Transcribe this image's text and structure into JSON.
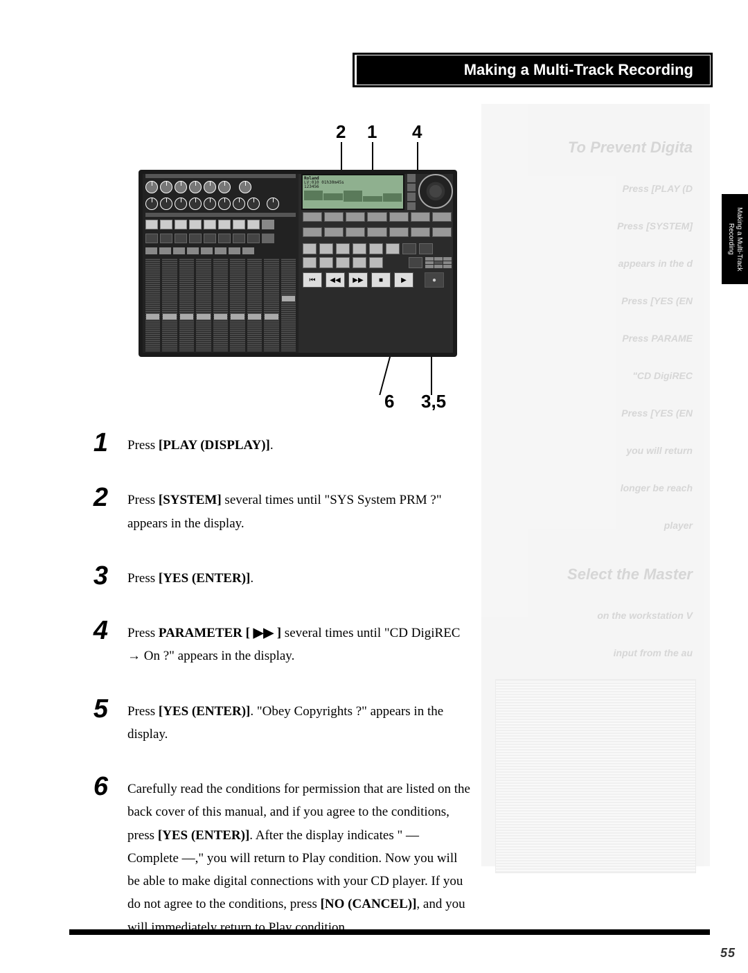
{
  "header": {
    "title": "Making a Multi-Track Recording"
  },
  "side_tab": {
    "text": "Making a Multi-Track\nRecording"
  },
  "ghost": {
    "heading": "To Prevent Digita",
    "lines": [
      "Press [PLAY (D",
      "Press [SYSTEM]",
      "appears in the d",
      "Press [YES (EN",
      "Press PARAME",
      "\"CD DigiREC",
      "Press [YES (EN",
      "you will return",
      "longer be reach",
      "player",
      "Select the Master",
      "on the workstation V",
      "input from the au"
    ]
  },
  "diagram": {
    "top_callouts": {
      "c2": "2",
      "c1": "1",
      "c4": "4"
    },
    "bottom_callouts": {
      "c6": "6",
      "c35": "3,5"
    },
    "lcd_brand": "Roland",
    "lcd_lines": [
      "LV:010  01h30m45s",
      "123456"
    ]
  },
  "steps": [
    {
      "num": "1",
      "body": [
        {
          "t": "Press ",
          "b": false
        },
        {
          "t": "[PLAY (DISPLAY)]",
          "b": true
        },
        {
          "t": ".",
          "b": false
        }
      ]
    },
    {
      "num": "2",
      "body": [
        {
          "t": "Press ",
          "b": false
        },
        {
          "t": "[SYSTEM]",
          "b": true
        },
        {
          "t": " several times until \"SYS System PRM ?\" appears in the display.",
          "b": false
        }
      ]
    },
    {
      "num": "3",
      "body": [
        {
          "t": "Press ",
          "b": false
        },
        {
          "t": "[YES (ENTER)]",
          "b": true
        },
        {
          "t": ".",
          "b": false
        }
      ]
    },
    {
      "num": "4",
      "body": [
        {
          "t": "Press ",
          "b": false
        },
        {
          "t": "PARAMETER [ ▶▶ ]",
          "b": true
        },
        {
          "t": " several times until \"CD DigiREC → On ?\" appears in the display.",
          "b": false
        }
      ]
    },
    {
      "num": "5",
      "body": [
        {
          "t": "Press ",
          "b": false
        },
        {
          "t": "[YES (ENTER)]",
          "b": true
        },
        {
          "t": ". \"Obey Copyrights ?\" appears in the display.",
          "b": false
        }
      ]
    },
    {
      "num": "6",
      "body": [
        {
          "t": "Carefully read the conditions for permission that are listed on the back cover of this manual, and if you agree to the conditions, press ",
          "b": false
        },
        {
          "t": "[YES (ENTER)]",
          "b": true
        },
        {
          "t": ". After the display indicates \" — Complete —,\" you will return to Play condition. Now you will be able to make digital connections with your CD player. If you do not agree to the conditions, press ",
          "b": false
        },
        {
          "t": "[NO (CANCEL)]",
          "b": true
        },
        {
          "t": ", and you will immediately return to Play condition.",
          "b": false
        }
      ]
    }
  ],
  "page_number": "55"
}
